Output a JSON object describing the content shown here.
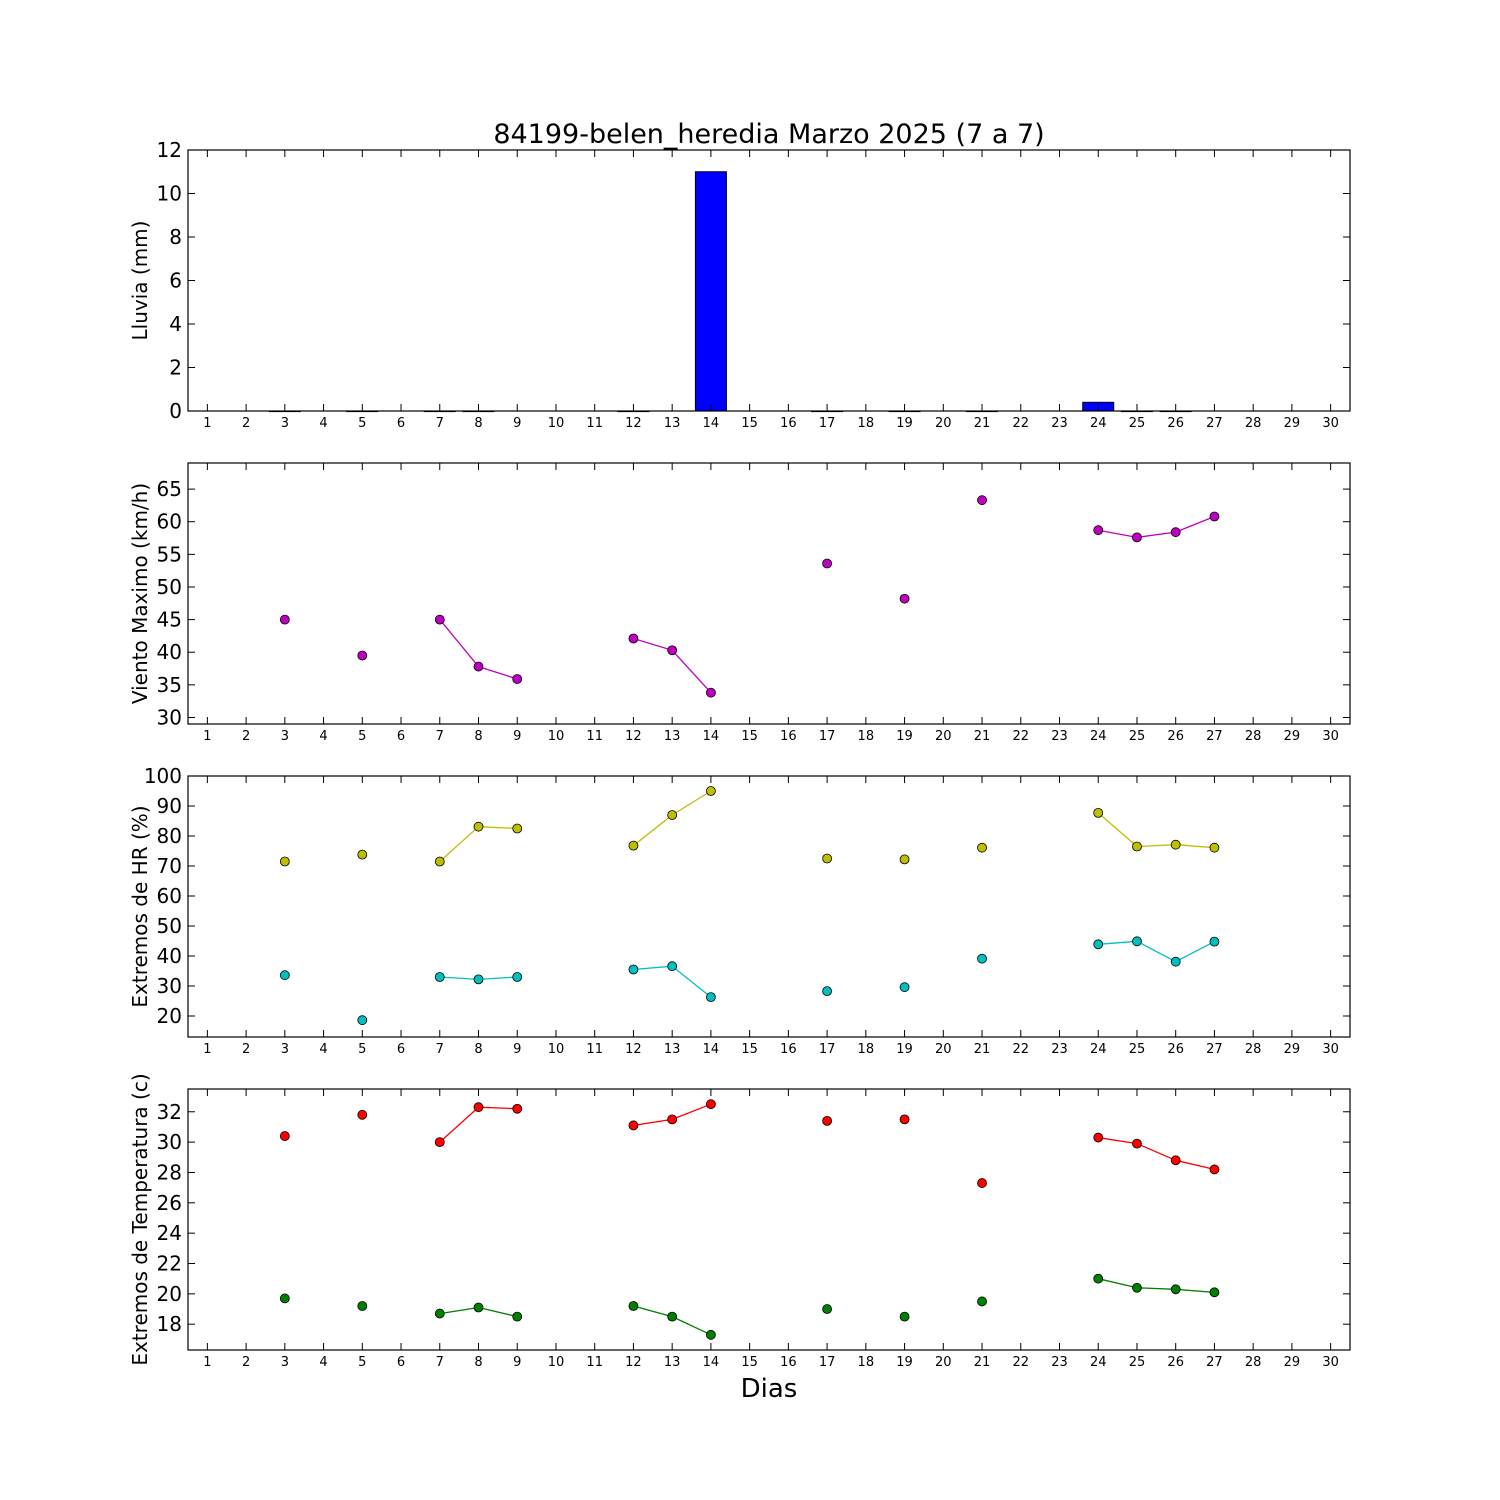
{
  "title": "84199-belen_heredia Marzo 2025  (7 a 7)",
  "xlabel": "Dias",
  "x_ticks": [
    1,
    2,
    3,
    4,
    5,
    6,
    7,
    8,
    9,
    10,
    11,
    12,
    13,
    14,
    15,
    16,
    17,
    18,
    19,
    20,
    21,
    22,
    23,
    24,
    25,
    26,
    27,
    28,
    29,
    30
  ],
  "chart_data": [
    {
      "type": "bar",
      "ylabel": "Lluvia (mm)",
      "xlim": [
        0.5,
        30.5
      ],
      "ylim": [
        0,
        12
      ],
      "yticks": [
        0,
        2,
        4,
        6,
        8,
        10,
        12
      ],
      "grid": false,
      "series": [
        {
          "color": "#0000ff",
          "x": [
            3,
            5,
            7,
            8,
            12,
            14,
            17,
            19,
            21,
            24,
            25,
            26
          ],
          "values": [
            0,
            0,
            0,
            0,
            0,
            11.0,
            0,
            0,
            0,
            0.4,
            0,
            0
          ]
        }
      ]
    },
    {
      "type": "line",
      "ylabel": "Viento Maximo (km/h)",
      "xlim": [
        0.5,
        30.5
      ],
      "ylim": [
        29,
        69
      ],
      "yticks": [
        30,
        35,
        40,
        45,
        50,
        55,
        60,
        65
      ],
      "grid": false,
      "series": [
        {
          "color": "#c000c0",
          "points": [
            [
              3,
              45.0
            ],
            [
              5,
              39.5
            ],
            [
              7,
              45.0
            ],
            [
              8,
              37.8
            ],
            [
              9,
              35.9
            ],
            [
              12,
              42.1
            ],
            [
              13,
              40.3
            ],
            [
              14,
              33.8
            ],
            [
              17,
              53.6
            ],
            [
              19,
              48.2
            ],
            [
              21,
              63.3
            ],
            [
              24,
              58.7
            ],
            [
              25,
              57.6
            ],
            [
              26,
              58.4
            ],
            [
              27,
              60.8
            ]
          ]
        }
      ]
    },
    {
      "type": "line",
      "ylabel": "Extremos de HR (%)",
      "xlim": [
        0.5,
        30.5
      ],
      "ylim": [
        13,
        100
      ],
      "yticks": [
        20,
        30,
        40,
        50,
        60,
        70,
        80,
        90,
        100
      ],
      "grid": false,
      "series": [
        {
          "color": "#bfbf00",
          "points": [
            [
              3,
              71.5
            ],
            [
              5,
              73.8
            ],
            [
              7,
              71.5
            ],
            [
              8,
              83.1
            ],
            [
              9,
              82.5
            ],
            [
              12,
              76.8
            ],
            [
              13,
              87.0
            ],
            [
              14,
              95.0
            ],
            [
              17,
              72.5
            ],
            [
              19,
              72.2
            ],
            [
              21,
              76.1
            ],
            [
              24,
              87.7
            ],
            [
              25,
              76.5
            ],
            [
              26,
              77.1
            ],
            [
              27,
              76.1
            ]
          ]
        },
        {
          "color": "#00bfbf",
          "points": [
            [
              3,
              33.6
            ],
            [
              5,
              18.6
            ],
            [
              7,
              33.0
            ],
            [
              8,
              32.2
            ],
            [
              9,
              33.0
            ],
            [
              12,
              35.5
            ],
            [
              13,
              36.6
            ],
            [
              14,
              26.3
            ],
            [
              17,
              28.3
            ],
            [
              19,
              29.6
            ],
            [
              21,
              39.1
            ],
            [
              24,
              43.9
            ],
            [
              25,
              44.9
            ],
            [
              26,
              38.1
            ],
            [
              27,
              44.8
            ]
          ]
        }
      ]
    },
    {
      "type": "line",
      "ylabel": "Extremos de Temperatura (c)",
      "xlim": [
        0.5,
        30.5
      ],
      "ylim": [
        16.3,
        33.5
      ],
      "yticks": [
        18,
        20,
        22,
        24,
        26,
        28,
        30,
        32
      ],
      "grid": false,
      "series": [
        {
          "color": "#ff0000",
          "points": [
            [
              3,
              30.4
            ],
            [
              5,
              31.8
            ],
            [
              7,
              30.0
            ],
            [
              8,
              32.3
            ],
            [
              9,
              32.2
            ],
            [
              12,
              31.1
            ],
            [
              13,
              31.5
            ],
            [
              14,
              32.5
            ],
            [
              17,
              31.4
            ],
            [
              19,
              31.5
            ],
            [
              21,
              27.3
            ],
            [
              24,
              30.3
            ],
            [
              25,
              29.9
            ],
            [
              26,
              28.8
            ],
            [
              27,
              28.2
            ]
          ]
        },
        {
          "color": "#008000",
          "points": [
            [
              3,
              19.7
            ],
            [
              5,
              19.2
            ],
            [
              7,
              18.7
            ],
            [
              8,
              19.1
            ],
            [
              9,
              18.5
            ],
            [
              12,
              19.2
            ],
            [
              13,
              18.5
            ],
            [
              14,
              17.3
            ],
            [
              17,
              19.0
            ],
            [
              19,
              18.5
            ],
            [
              21,
              19.5
            ],
            [
              24,
              21.0
            ],
            [
              25,
              20.4
            ],
            [
              26,
              20.3
            ],
            [
              27,
              20.1
            ]
          ]
        }
      ]
    }
  ]
}
